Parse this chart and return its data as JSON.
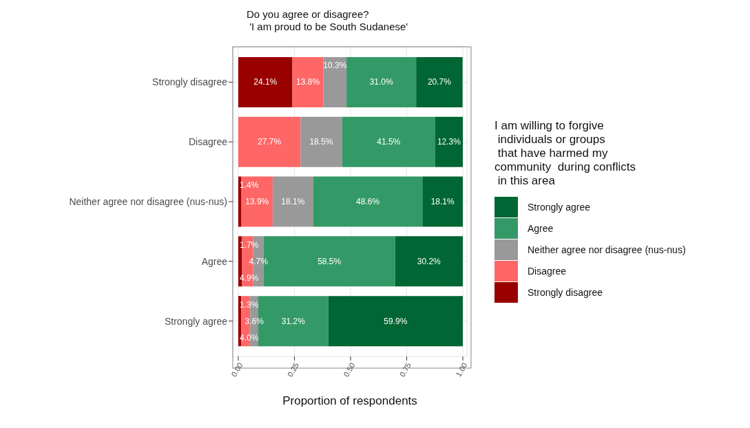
{
  "chart_data": {
    "type": "bar",
    "orientation": "horizontal",
    "stacked": true,
    "title": "Do you agree or disagree?\n 'I am proud to be South Sudanese'",
    "xlabel": "Proportion of respondents",
    "legend_title": "I am willing to forgive\n individuals or groups\n that have harmed my\ncommunity  during conflicts\n in this area",
    "categories": [
      "Strongly disagree",
      "Disagree",
      "Neither agree nor disagree (nus-nus)",
      "Agree",
      "Strongly agree"
    ],
    "series": [
      {
        "name": "Strongly disagree",
        "color": "#990000",
        "values": [
          0.241,
          0,
          0.014,
          0.017,
          0.013
        ],
        "value_labels": [
          "24.1%",
          null,
          "1.4%",
          "1.7%",
          "1.3%"
        ]
      },
      {
        "name": "Disagree",
        "color": "#ff6666",
        "values": [
          0.138,
          0.277,
          0.139,
          0.049,
          0.04
        ],
        "value_labels": [
          "13.8%",
          "27.7%",
          "13.9%",
          "4.9%",
          "4.0%"
        ]
      },
      {
        "name": "Neither agree nor disagree (nus-nus)",
        "color": "#999999",
        "values": [
          0.103,
          0.185,
          0.181,
          0.047,
          0.036
        ],
        "value_labels": [
          "10.3%",
          "18.5%",
          "18.1%",
          "4.7%",
          "3.6%"
        ]
      },
      {
        "name": "Agree",
        "color": "#339966",
        "values": [
          0.31,
          0.415,
          0.486,
          0.585,
          0.312
        ],
        "value_labels": [
          "31.0%",
          "41.5%",
          "48.6%",
          "58.5%",
          "31.2%"
        ]
      },
      {
        "name": "Strongly agree",
        "color": "#006633",
        "values": [
          0.207,
          0.123,
          0.181,
          0.302,
          0.599
        ],
        "value_labels": [
          "20.7%",
          "12.3%",
          "18.1%",
          "30.2%",
          "59.9%"
        ]
      }
    ],
    "xlim": [
      0,
      1
    ],
    "xticks": [
      {
        "value": 0,
        "label": "0.00"
      },
      {
        "value": 0.25,
        "label": "0.25"
      },
      {
        "value": 0.5,
        "label": "0.50"
      },
      {
        "value": 0.75,
        "label": "0.75"
      },
      {
        "value": 1,
        "label": "1.00"
      }
    ],
    "grid": true,
    "legend": "right"
  }
}
